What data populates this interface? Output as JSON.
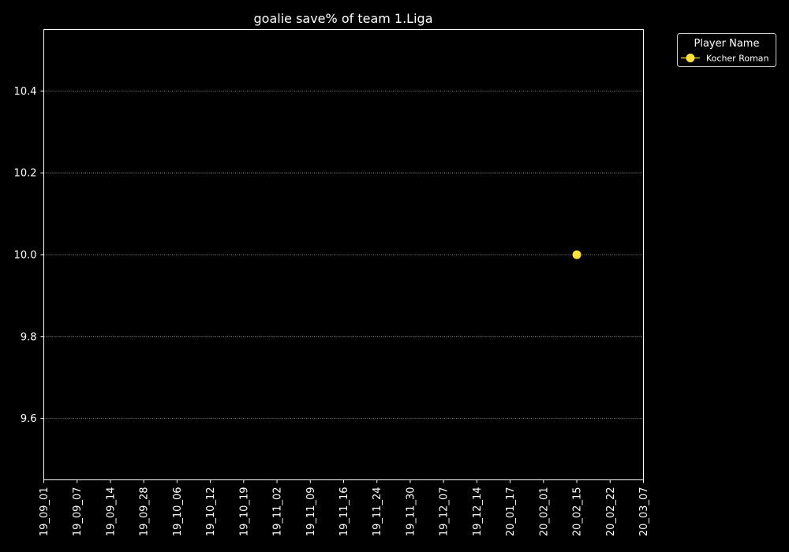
{
  "chart_data": {
    "type": "scatter",
    "title": "goalie save% of team 1.Liga",
    "xlabel": "",
    "ylabel": "",
    "categories": [
      "19_09_01",
      "19_09_07",
      "19_09_14",
      "19_09_28",
      "19_10_06",
      "19_10_12",
      "19_10_19",
      "19_11_02",
      "19_11_09",
      "19_11_16",
      "19_11_24",
      "19_11_30",
      "19_12_07",
      "19_12_14",
      "20_01_17",
      "20_02_01",
      "20_02_15",
      "20_02_22",
      "20_03_07"
    ],
    "ylim": [
      9.45,
      10.55
    ],
    "yticks": [
      "9.6",
      "9.8",
      "10.0",
      "10.2",
      "10.4"
    ],
    "grid": "y-dotted",
    "legend": {
      "title": "Player Name",
      "placement": "outside-top-right"
    },
    "series": [
      {
        "name": "Kocher Roman",
        "color": "#ffe333",
        "points": [
          {
            "x": "20_02_15",
            "y": 10.0
          }
        ]
      }
    ]
  }
}
